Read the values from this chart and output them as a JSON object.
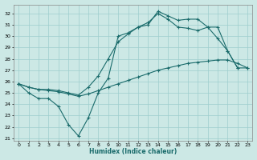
{
  "background_color": "#cce8e5",
  "grid_color": "#9ecece",
  "line_color": "#1a6b6b",
  "xlabel": "Humidex (Indice chaleur)",
  "xlim": [
    -0.5,
    23.5
  ],
  "ylim": [
    20.8,
    32.8
  ],
  "yticks": [
    21,
    22,
    23,
    24,
    25,
    26,
    27,
    28,
    29,
    30,
    31,
    32
  ],
  "xticks": [
    0,
    1,
    2,
    3,
    4,
    5,
    6,
    7,
    8,
    9,
    10,
    11,
    12,
    13,
    14,
    15,
    16,
    17,
    18,
    19,
    20,
    21,
    22,
    23
  ],
  "curve_zigzag_x": [
    0,
    1,
    2,
    3,
    4,
    5,
    6,
    7,
    8,
    9,
    10,
    11,
    12,
    13,
    14,
    15,
    16,
    17,
    18,
    19,
    20,
    21,
    22
  ],
  "curve_zigzag_y": [
    25.8,
    25.0,
    24.5,
    24.5,
    23.8,
    22.2,
    21.2,
    22.8,
    25.0,
    26.3,
    30.0,
    30.3,
    30.8,
    31.0,
    32.2,
    31.8,
    31.4,
    31.5,
    31.5,
    30.8,
    29.8,
    28.7,
    27.2
  ],
  "curve_upper_x": [
    0,
    1,
    2,
    3,
    4,
    5,
    6,
    7,
    8,
    9,
    10,
    11,
    12,
    13,
    14,
    15,
    16,
    17,
    18,
    19,
    20,
    21,
    22,
    23
  ],
  "curve_upper_y": [
    25.8,
    25.5,
    25.3,
    25.3,
    25.2,
    25.0,
    24.8,
    25.5,
    26.5,
    28.0,
    29.5,
    30.2,
    30.8,
    31.2,
    32.0,
    31.5,
    30.8,
    30.7,
    30.5,
    30.8,
    30.8,
    28.7,
    27.2,
    27.2
  ],
  "curve_lower_x": [
    0,
    1,
    2,
    3,
    4,
    5,
    6,
    7,
    8,
    9,
    10,
    11,
    12,
    13,
    14,
    15,
    16,
    17,
    18,
    19,
    20,
    21,
    22,
    23
  ],
  "curve_lower_y": [
    25.8,
    25.5,
    25.3,
    25.2,
    25.1,
    24.9,
    24.7,
    24.9,
    25.2,
    25.5,
    25.8,
    26.1,
    26.4,
    26.7,
    27.0,
    27.2,
    27.4,
    27.6,
    27.7,
    27.8,
    27.9,
    27.9,
    27.6,
    27.2
  ]
}
